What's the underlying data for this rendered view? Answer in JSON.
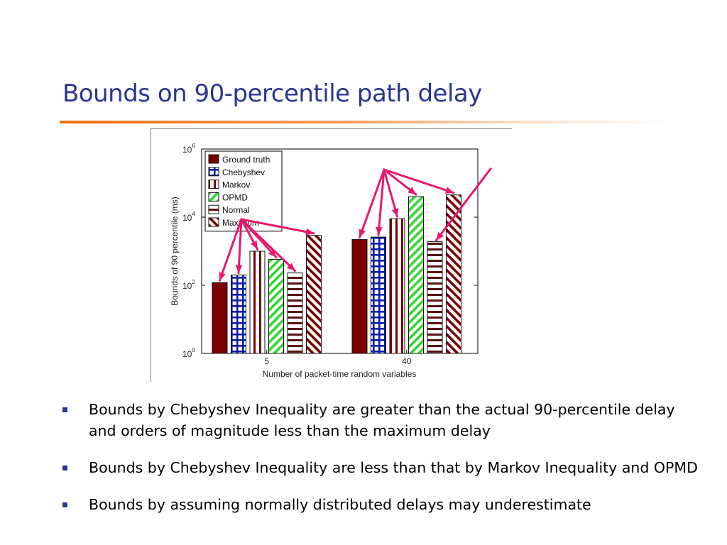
{
  "slide": {
    "title": "Bounds on 90-percentile path delay",
    "bullets": [
      "Bounds by Chebyshev Inequality are greater than the actual 90-percentile delay and orders of magnitude less than the maximum delay",
      "Bounds by Chebyshev Inequality are less than that by Markov Inequality and OPMD",
      "Bounds by assuming normally distributed delays may underestimate"
    ]
  },
  "colors": {
    "title": "#2b3592",
    "rule": "#ee6f10",
    "bullet_marker": "#2b3592",
    "annotation_arrows": "#e8186d"
  },
  "chart_data": {
    "type": "bar",
    "xlabel": "Number of packet-time random variables",
    "ylabel": "Bounds of 90 percentile (ms)",
    "yscale": "log",
    "ylim": [
      1,
      1000000
    ],
    "yticks": [
      {
        "base": "10",
        "exp": "0"
      },
      {
        "base": "10",
        "exp": "2"
      },
      {
        "base": "10",
        "exp": "4"
      },
      {
        "base": "10",
        "exp": "6"
      }
    ],
    "categories": [
      "5",
      "40"
    ],
    "series": [
      {
        "name": "Ground truth",
        "values": [
          120,
          2200
        ],
        "color": "#7a0000",
        "pattern": "solid"
      },
      {
        "name": "Chebyshev",
        "values": [
          200,
          2600
        ],
        "color": "#0a1ea8",
        "pattern": "grid"
      },
      {
        "name": "Markov",
        "values": [
          1000,
          9000
        ],
        "color": "#7a0000",
        "pattern": "vertical"
      },
      {
        "name": "OPMD",
        "values": [
          580,
          40000
        ],
        "color": "#2ed82e",
        "pattern": "diagonal"
      },
      {
        "name": "Normal",
        "values": [
          230,
          1900
        ],
        "color": "#5a1010",
        "pattern": "horizontal"
      },
      {
        "name": "Maximum",
        "values": [
          2900,
          45000
        ],
        "color": "#7a0000",
        "pattern": "diagonal-back"
      }
    ],
    "legend": "top-left",
    "grid": false
  }
}
